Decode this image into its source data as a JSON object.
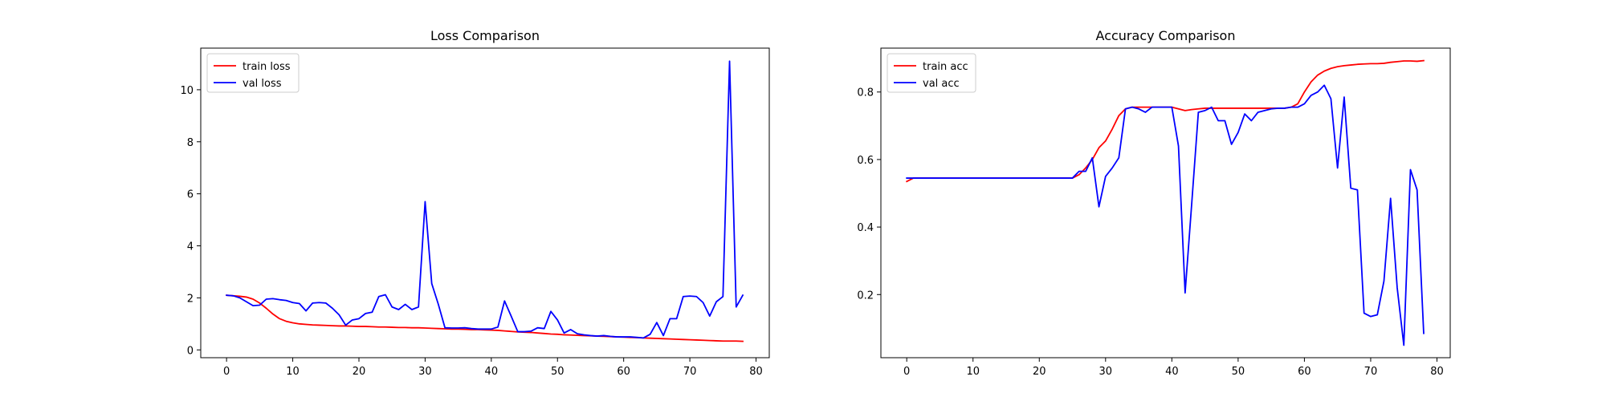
{
  "chart_data": [
    {
      "type": "line",
      "title": "Loss Comparison",
      "xlabel": "",
      "ylabel": "",
      "xlim": [
        -3.9,
        82
      ],
      "ylim": [
        -0.3,
        11.6
      ],
      "xticks": [
        0,
        10,
        20,
        30,
        40,
        50,
        60,
        70,
        80
      ],
      "yticks": [
        0,
        2,
        4,
        6,
        8,
        10
      ],
      "grid": false,
      "legend": "top-left",
      "series": [
        {
          "name": "train loss",
          "color": "#ff0000",
          "x": [
            0,
            1,
            2,
            3,
            4,
            5,
            6,
            7,
            8,
            9,
            10,
            11,
            12,
            13,
            14,
            15,
            16,
            17,
            18,
            19,
            20,
            21,
            22,
            23,
            24,
            25,
            26,
            27,
            28,
            29,
            30,
            31,
            32,
            33,
            34,
            35,
            36,
            37,
            38,
            39,
            40,
            41,
            42,
            43,
            44,
            45,
            46,
            47,
            48,
            49,
            50,
            51,
            52,
            53,
            54,
            55,
            56,
            57,
            58,
            59,
            60,
            61,
            62,
            63,
            64,
            65,
            66,
            67,
            68,
            69,
            70,
            71,
            72,
            73,
            74,
            75,
            76,
            77,
            78
          ],
          "y": [
            2.1,
            2.08,
            2.06,
            2.03,
            1.95,
            1.8,
            1.6,
            1.38,
            1.2,
            1.1,
            1.04,
            1.0,
            0.98,
            0.96,
            0.95,
            0.94,
            0.93,
            0.92,
            0.92,
            0.91,
            0.9,
            0.9,
            0.89,
            0.88,
            0.88,
            0.87,
            0.86,
            0.86,
            0.85,
            0.85,
            0.84,
            0.83,
            0.82,
            0.81,
            0.8,
            0.8,
            0.79,
            0.78,
            0.78,
            0.77,
            0.76,
            0.75,
            0.73,
            0.71,
            0.69,
            0.68,
            0.67,
            0.65,
            0.63,
            0.61,
            0.6,
            0.58,
            0.57,
            0.56,
            0.55,
            0.54,
            0.53,
            0.52,
            0.51,
            0.5,
            0.49,
            0.48,
            0.47,
            0.46,
            0.45,
            0.44,
            0.43,
            0.42,
            0.41,
            0.4,
            0.39,
            0.38,
            0.37,
            0.36,
            0.35,
            0.34,
            0.34,
            0.34,
            0.33
          ]
        },
        {
          "name": "val loss",
          "color": "#0000ff",
          "x": [
            0,
            1,
            2,
            3,
            4,
            5,
            6,
            7,
            8,
            9,
            10,
            11,
            12,
            13,
            14,
            15,
            16,
            17,
            18,
            19,
            20,
            21,
            22,
            23,
            24,
            25,
            26,
            27,
            28,
            29,
            30,
            31,
            32,
            33,
            34,
            35,
            36,
            37,
            38,
            39,
            40,
            41,
            42,
            43,
            44,
            45,
            46,
            47,
            48,
            49,
            50,
            51,
            52,
            53,
            54,
            55,
            56,
            57,
            58,
            59,
            60,
            61,
            62,
            63,
            64,
            65,
            66,
            67,
            68,
            69,
            70,
            71,
            72,
            73,
            74,
            75,
            76,
            77,
            78
          ],
          "y": [
            2.1,
            2.08,
            2.0,
            1.85,
            1.7,
            1.72,
            1.95,
            1.97,
            1.93,
            1.9,
            1.82,
            1.78,
            1.5,
            1.8,
            1.82,
            1.8,
            1.6,
            1.35,
            0.95,
            1.15,
            1.2,
            1.4,
            1.45,
            2.05,
            2.12,
            1.65,
            1.55,
            1.75,
            1.55,
            1.65,
            5.7,
            2.55,
            1.75,
            0.85,
            0.84,
            0.84,
            0.85,
            0.82,
            0.8,
            0.8,
            0.8,
            0.88,
            1.88,
            1.3,
            0.7,
            0.7,
            0.72,
            0.85,
            0.82,
            1.48,
            1.15,
            0.65,
            0.78,
            0.62,
            0.58,
            0.55,
            0.53,
            0.55,
            0.52,
            0.5,
            0.5,
            0.5,
            0.48,
            0.46,
            0.6,
            1.05,
            0.55,
            1.2,
            1.2,
            2.05,
            2.07,
            2.05,
            1.82,
            1.3,
            1.85,
            2.05,
            11.1,
            1.65,
            2.1
          ]
        }
      ]
    },
    {
      "type": "line",
      "title": "Accuracy Comparison",
      "xlabel": "",
      "ylabel": "",
      "xlim": [
        -3.9,
        82
      ],
      "ylim": [
        0.013,
        0.93
      ],
      "xticks": [
        0,
        10,
        20,
        30,
        40,
        50,
        60,
        70,
        80
      ],
      "yticks": [
        0.2,
        0.4,
        0.6,
        0.8
      ],
      "grid": false,
      "legend": "top-left",
      "series": [
        {
          "name": "train acc",
          "color": "#ff0000",
          "x": [
            0,
            1,
            2,
            3,
            4,
            5,
            6,
            7,
            8,
            9,
            10,
            11,
            12,
            13,
            14,
            15,
            16,
            17,
            18,
            19,
            20,
            21,
            22,
            23,
            24,
            25,
            26,
            27,
            28,
            29,
            30,
            31,
            32,
            33,
            34,
            35,
            36,
            37,
            38,
            39,
            40,
            41,
            42,
            43,
            44,
            45,
            46,
            47,
            48,
            49,
            50,
            51,
            52,
            53,
            54,
            55,
            56,
            57,
            58,
            59,
            60,
            61,
            62,
            63,
            64,
            65,
            66,
            67,
            68,
            69,
            70,
            71,
            72,
            73,
            74,
            75,
            76,
            77,
            78
          ],
          "y": [
            0.535,
            0.545,
            0.545,
            0.545,
            0.545,
            0.545,
            0.545,
            0.545,
            0.545,
            0.545,
            0.545,
            0.545,
            0.545,
            0.545,
            0.545,
            0.545,
            0.545,
            0.545,
            0.545,
            0.545,
            0.545,
            0.545,
            0.545,
            0.545,
            0.545,
            0.545,
            0.555,
            0.575,
            0.6,
            0.635,
            0.655,
            0.69,
            0.73,
            0.75,
            0.755,
            0.755,
            0.755,
            0.755,
            0.755,
            0.755,
            0.755,
            0.75,
            0.745,
            0.748,
            0.75,
            0.752,
            0.752,
            0.752,
            0.752,
            0.752,
            0.752,
            0.752,
            0.752,
            0.752,
            0.752,
            0.752,
            0.752,
            0.752,
            0.755,
            0.765,
            0.8,
            0.83,
            0.85,
            0.862,
            0.87,
            0.875,
            0.878,
            0.88,
            0.882,
            0.883,
            0.884,
            0.884,
            0.885,
            0.888,
            0.89,
            0.892,
            0.892,
            0.891,
            0.893
          ]
        },
        {
          "name": "val acc",
          "color": "#0000ff",
          "x": [
            0,
            1,
            2,
            3,
            4,
            5,
            6,
            7,
            8,
            9,
            10,
            11,
            12,
            13,
            14,
            15,
            16,
            17,
            18,
            19,
            20,
            21,
            22,
            23,
            24,
            25,
            26,
            27,
            28,
            29,
            30,
            31,
            32,
            33,
            34,
            35,
            36,
            37,
            38,
            39,
            40,
            41,
            42,
            43,
            44,
            45,
            46,
            47,
            48,
            49,
            50,
            51,
            52,
            53,
            54,
            55,
            56,
            57,
            58,
            59,
            60,
            61,
            62,
            63,
            64,
            65,
            66,
            67,
            68,
            69,
            70,
            71,
            72,
            73,
            74,
            75,
            76,
            77,
            78
          ],
          "y": [
            0.545,
            0.545,
            0.545,
            0.545,
            0.545,
            0.545,
            0.545,
            0.545,
            0.545,
            0.545,
            0.545,
            0.545,
            0.545,
            0.545,
            0.545,
            0.545,
            0.545,
            0.545,
            0.545,
            0.545,
            0.545,
            0.545,
            0.545,
            0.545,
            0.545,
            0.545,
            0.565,
            0.565,
            0.605,
            0.46,
            0.55,
            0.575,
            0.605,
            0.75,
            0.755,
            0.75,
            0.74,
            0.755,
            0.755,
            0.755,
            0.755,
            0.64,
            0.205,
            0.47,
            0.74,
            0.745,
            0.755,
            0.715,
            0.715,
            0.645,
            0.68,
            0.735,
            0.715,
            0.74,
            0.745,
            0.75,
            0.752,
            0.752,
            0.755,
            0.755,
            0.765,
            0.79,
            0.8,
            0.82,
            0.78,
            0.575,
            0.785,
            0.515,
            0.51,
            0.145,
            0.135,
            0.14,
            0.24,
            0.485,
            0.22,
            0.05,
            0.57,
            0.51,
            0.085
          ]
        }
      ]
    }
  ]
}
